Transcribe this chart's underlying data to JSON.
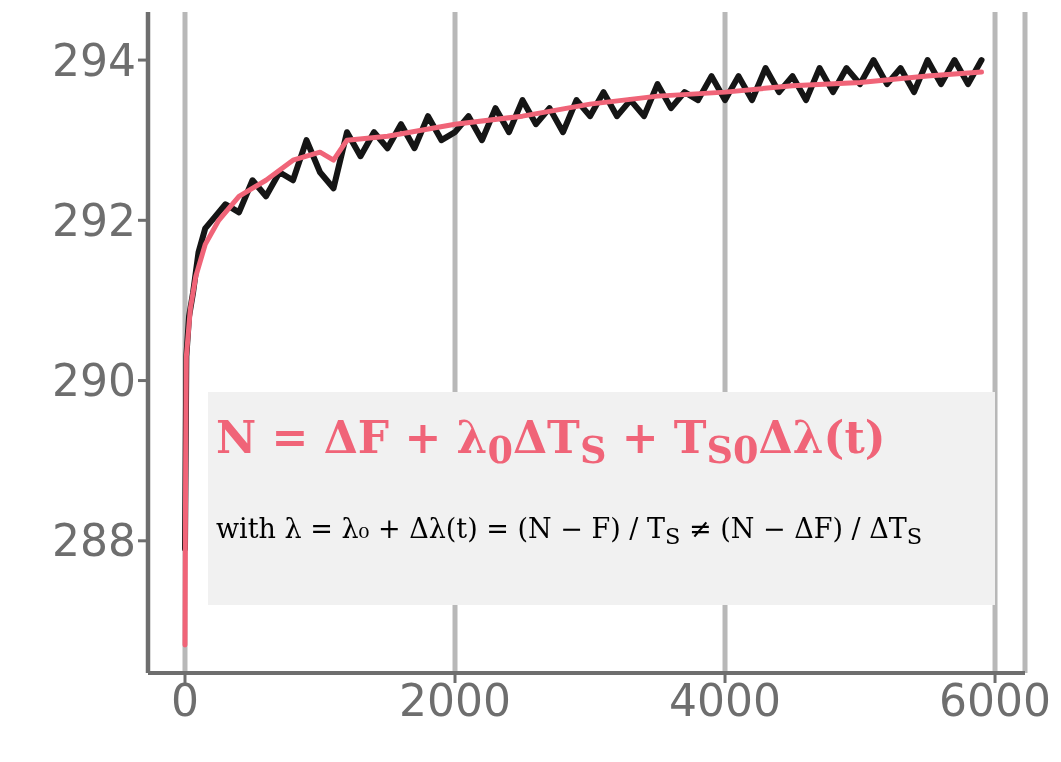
{
  "chart_data": {
    "type": "line",
    "xlim": [
      -274,
      6222
    ],
    "ylim": [
      286.35,
      294.6
    ],
    "xticks": [
      0,
      2000,
      4000,
      6000
    ],
    "yticks": [
      288,
      290,
      292,
      294
    ],
    "grid": "x",
    "marker": "none",
    "line_style": "solid",
    "annotations": [
      "N = ΔF + λ$_{0}$ΔT$_{S}$ + T$_{S0}$Δλ(t)",
      "with  λ = λ₀ + Δλ(t) = (N − F) / T$_{S}$ ≠ (N − ΔF) / ΔT$_{S}$"
    ],
    "series": [
      {
        "color": "#151515",
        "x": [
          0,
          10,
          30,
          60,
          100,
          150,
          200,
          300,
          400,
          500,
          600,
          700,
          800,
          900,
          1000,
          1100,
          1200,
          1300,
          1400,
          1500,
          1600,
          1700,
          1800,
          1900,
          2000,
          2100,
          2200,
          2300,
          2400,
          2500,
          2600,
          2700,
          2800,
          2900,
          3000,
          3100,
          3200,
          3300,
          3400,
          3500,
          3600,
          3700,
          3800,
          3900,
          4000,
          4100,
          4200,
          4300,
          4400,
          4500,
          4600,
          4700,
          4800,
          4900,
          5000,
          5100,
          5200,
          5300,
          5400,
          5500,
          5600,
          5700,
          5800,
          5900
        ],
        "values": [
          287.9,
          290.3,
          290.8,
          291.1,
          291.6,
          291.9,
          292.0,
          292.2,
          292.1,
          292.5,
          292.3,
          292.6,
          292.5,
          293.0,
          292.6,
          292.4,
          293.1,
          292.8,
          293.1,
          292.9,
          293.2,
          292.9,
          293.3,
          293.0,
          293.1,
          293.3,
          293.0,
          293.4,
          293.1,
          293.5,
          293.2,
          293.4,
          293.1,
          293.5,
          293.3,
          293.6,
          293.3,
          293.5,
          293.3,
          293.7,
          293.4,
          293.6,
          293.5,
          293.8,
          293.5,
          293.8,
          293.5,
          293.9,
          293.6,
          293.8,
          293.5,
          293.9,
          293.6,
          293.9,
          293.7,
          294.0,
          293.7,
          293.9,
          293.6,
          294.0,
          293.7,
          294.0,
          293.7,
          294.0
        ]
      },
      {
        "color": "#f06478",
        "x": [
          0,
          5,
          10,
          40,
          80,
          150,
          250,
          400,
          600,
          800,
          1000,
          1100,
          1200,
          1500,
          2000,
          2500,
          3000,
          3500,
          4000,
          4500,
          5000,
          5500,
          5900
        ],
        "values": [
          286.7,
          289.0,
          290.3,
          290.9,
          291.3,
          291.7,
          292.0,
          292.3,
          292.5,
          292.75,
          292.85,
          292.75,
          293.0,
          293.05,
          293.2,
          293.3,
          293.45,
          293.55,
          293.6,
          293.68,
          293.72,
          293.8,
          293.85
        ]
      }
    ]
  }
}
